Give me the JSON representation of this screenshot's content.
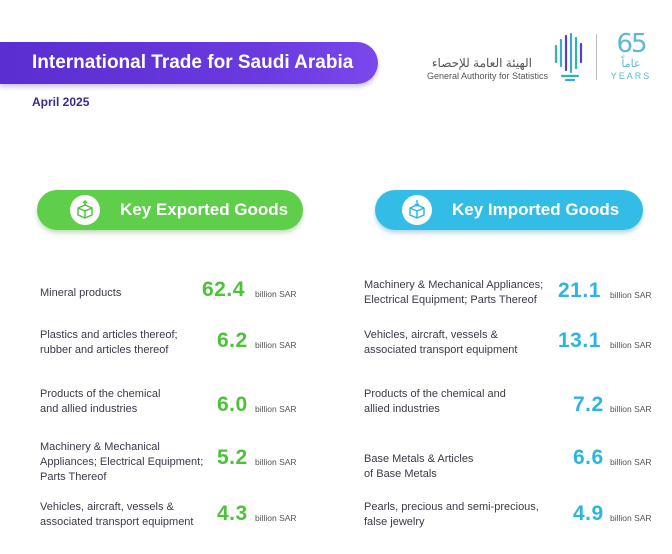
{
  "header": {
    "title": "International Trade for Saudi Arabia",
    "date": "April 2025"
  },
  "org": {
    "name_ar": "الهيئة العامة للإحصاء",
    "name_en": "General Authority for Statistics",
    "anniversary_number": "65",
    "anniversary_ar": "عاماً",
    "anniversary_en": "YEARS"
  },
  "exports": {
    "heading": "Key Exported Goods",
    "icon": "box-export-icon",
    "accent": "#5fce4a",
    "items": [
      {
        "name": "Mineral products",
        "value": "62.4",
        "unit": "billion SAR"
      },
      {
        "name": "Plastics and articles thereof; rubber and articles thereof",
        "value": "6.2",
        "unit": "billion SAR"
      },
      {
        "name": "Products of the chemical and allied industries",
        "value": "6.0",
        "unit": "billion SAR"
      },
      {
        "name": "Machinery & Mechanical Appliances; Electrical Equipment; Parts Thereof",
        "value": "5.2",
        "unit": "billion SAR"
      },
      {
        "name": "Vehicles, aircraft, vessels & associated transport equipment",
        "value": "4.3",
        "unit": "billion SAR"
      }
    ]
  },
  "imports": {
    "heading": "Key Imported Goods",
    "icon": "box-import-icon",
    "accent": "#33bde6",
    "items": [
      {
        "name": "Machinery & Mechanical Appliances; Electrical Equipment; Parts Thereof",
        "value": "21.1",
        "unit": "billion SAR"
      },
      {
        "name": "Vehicles, aircraft, vessels & associated transport equipment",
        "value": "13.1",
        "unit": "billion SAR"
      },
      {
        "name": "Products of the chemical and allied industries",
        "value": "7.2",
        "unit": "billion SAR"
      },
      {
        "name": "Base Metals & Articles of Base Metals",
        "value": "6.6",
        "unit": "billion SAR"
      },
      {
        "name": "Pearls, precious and semi-precious, false jewelry",
        "value": "4.9",
        "unit": "billion SAR"
      }
    ]
  }
}
